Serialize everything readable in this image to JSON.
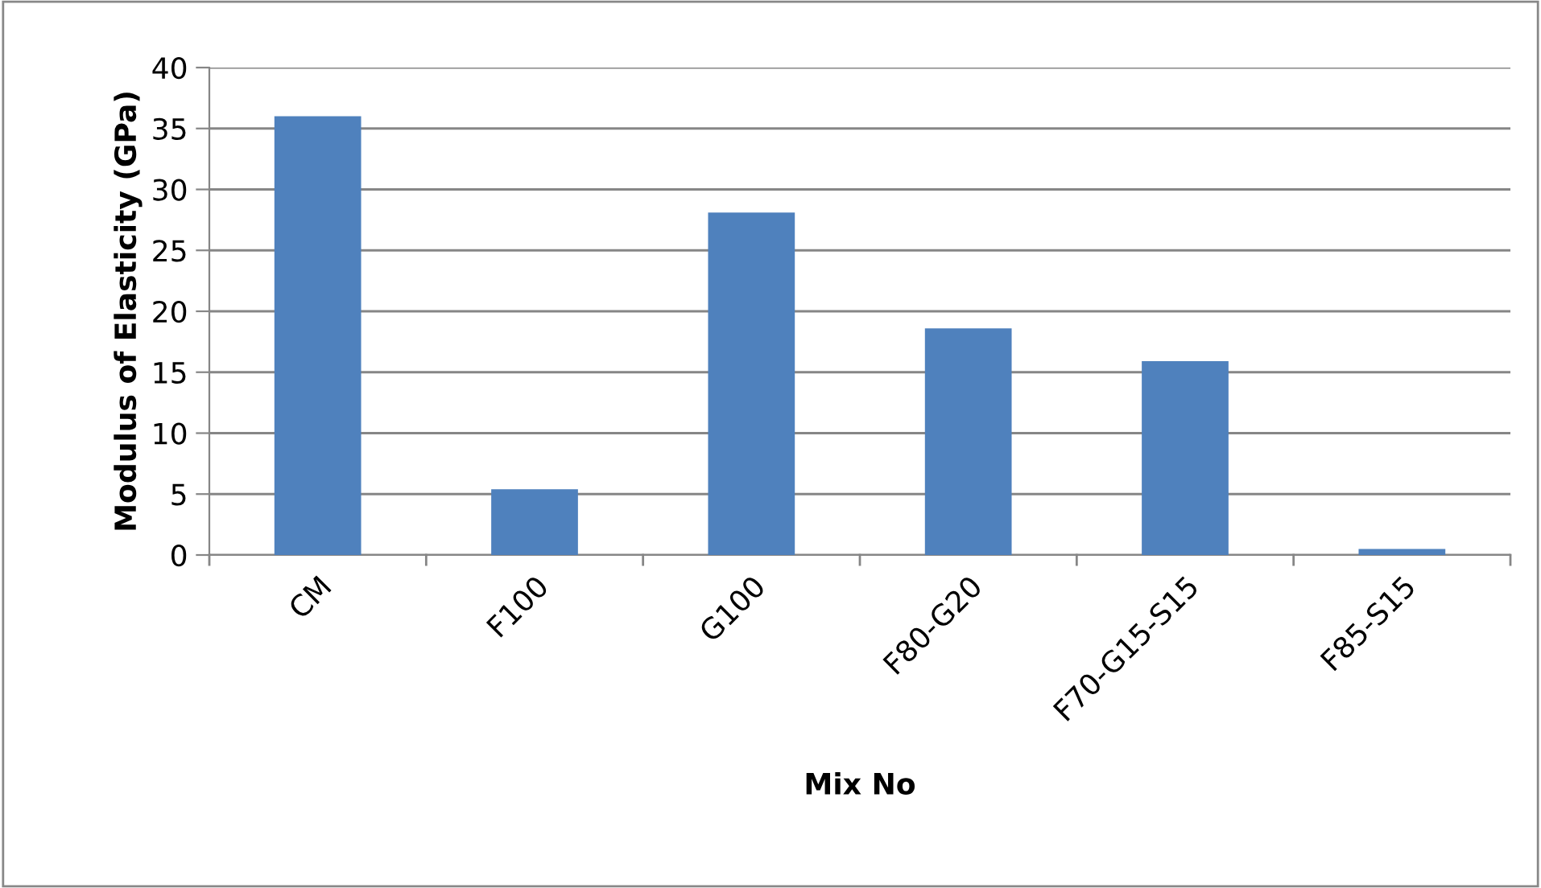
{
  "chart_data": {
    "type": "bar",
    "xlabel": "Mix No",
    "ylabel": "Modulus of Elasticity (GPa)",
    "categories": [
      "CM",
      "F100",
      "G100",
      "F80-G20",
      "F70-G15-S15",
      "F85-S15"
    ],
    "values": [
      36,
      5.4,
      28.1,
      18.6,
      15.9,
      0.5
    ],
    "color": "#4f81bd",
    "ylim": [
      0,
      40
    ],
    "yticks": [
      0,
      5,
      10,
      15,
      20,
      25,
      30,
      35,
      40
    ],
    "grid": "y",
    "legend": false
  }
}
